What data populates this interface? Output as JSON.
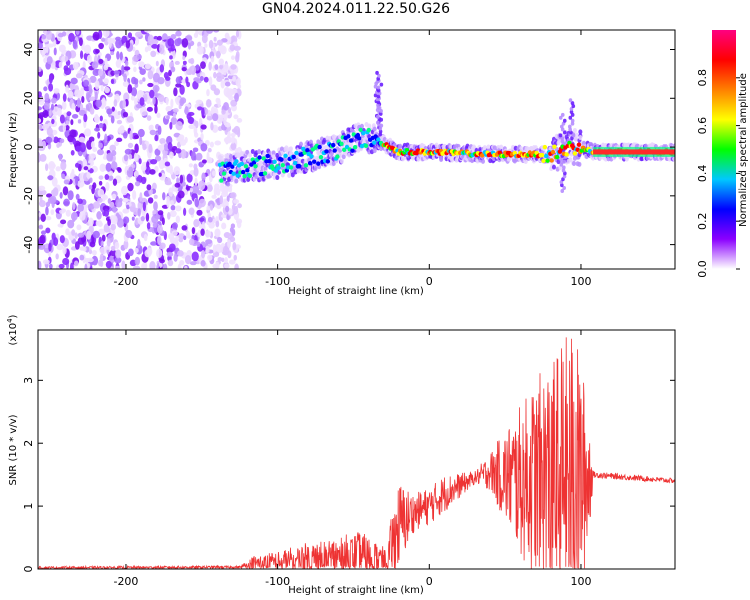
{
  "title": "GN04.2024.011.22.50.G26",
  "chart_data": [
    {
      "type": "heatmap",
      "id": "spectrogram",
      "xlabel": "Height of straight line (km)",
      "ylabel": "Frequency (Hz)",
      "xlim": [
        -258,
        162
      ],
      "ylim": [
        -50,
        48
      ],
      "xticks": [
        -200,
        -100,
        0,
        100
      ],
      "yticks": [
        -40,
        -20,
        0,
        20,
        40
      ],
      "noise_region_x": [
        -258,
        -135
      ],
      "signal_track": [
        {
          "x": -138,
          "f": -10
        },
        {
          "x": -120,
          "f": -8
        },
        {
          "x": -100,
          "f": -7
        },
        {
          "x": -80,
          "f": -4
        },
        {
          "x": -60,
          "f": -1
        },
        {
          "x": -45,
          "f": 4
        },
        {
          "x": -35,
          "f": 3
        },
        {
          "x": -20,
          "f": -2
        },
        {
          "x": 0,
          "f": -2
        },
        {
          "x": 40,
          "f": -3
        },
        {
          "x": 80,
          "f": -3
        },
        {
          "x": 95,
          "f": 0
        },
        {
          "x": 110,
          "f": -2
        },
        {
          "x": 162,
          "f": -2
        }
      ],
      "colorbar": {
        "label": "Normalized spectral amplitude",
        "range": [
          0,
          1
        ],
        "ticks": [
          "0.0",
          "0.2",
          "0.4",
          "0.6",
          "0.8"
        ],
        "colors": [
          "#ffffff",
          "#8b00ff",
          "#0000ff",
          "#00c8ff",
          "#00ff00",
          "#ffff00",
          "#ff8000",
          "#ff0000",
          "#ff0080"
        ]
      }
    },
    {
      "type": "line",
      "id": "snr",
      "xlabel": "Height of straight line (km)",
      "ylabel": "SNR (10 * v/v)",
      "scale_label": "(x10",
      "scale_exp": "4",
      "scale_close": ")",
      "xlim": [
        -258,
        162
      ],
      "ylim": [
        0,
        3.8
      ],
      "xticks": [
        -200,
        -100,
        0,
        100
      ],
      "yticks": [
        0,
        1,
        2,
        3
      ],
      "color": "#ee3333",
      "envelope": [
        {
          "x": -258,
          "base": 0.02,
          "amp": 0.02
        },
        {
          "x": -125,
          "base": 0.03,
          "amp": 0.02
        },
        {
          "x": -115,
          "base": 0.08,
          "amp": 0.15
        },
        {
          "x": -100,
          "base": 0.1,
          "amp": 0.18
        },
        {
          "x": -80,
          "base": 0.15,
          "amp": 0.28
        },
        {
          "x": -60,
          "base": 0.18,
          "amp": 0.35
        },
        {
          "x": -45,
          "base": 0.2,
          "amp": 0.4
        },
        {
          "x": -30,
          "base": 0.15,
          "amp": 0.2
        },
        {
          "x": -28,
          "base": 0.1,
          "amp": 0.15
        },
        {
          "x": -25,
          "base": 0.35,
          "amp": 0.5
        },
        {
          "x": -20,
          "base": 0.7,
          "amp": 0.7
        },
        {
          "x": -10,
          "base": 0.9,
          "amp": 0.3
        },
        {
          "x": 0,
          "base": 1.0,
          "amp": 0.3
        },
        {
          "x": 10,
          "base": 1.2,
          "amp": 0.3
        },
        {
          "x": 30,
          "base": 1.45,
          "amp": 0.1
        },
        {
          "x": 40,
          "base": 1.55,
          "amp": 0.3
        },
        {
          "x": 60,
          "base": 1.4,
          "amp": 1.2
        },
        {
          "x": 80,
          "base": 1.4,
          "amp": 2.0
        },
        {
          "x": 95,
          "base": 1.5,
          "amp": 2.4
        },
        {
          "x": 105,
          "base": 1.45,
          "amp": 1.2
        },
        {
          "x": 108,
          "base": 1.5,
          "amp": 0.05
        },
        {
          "x": 162,
          "base": 1.4,
          "amp": 0.04
        }
      ]
    }
  ]
}
